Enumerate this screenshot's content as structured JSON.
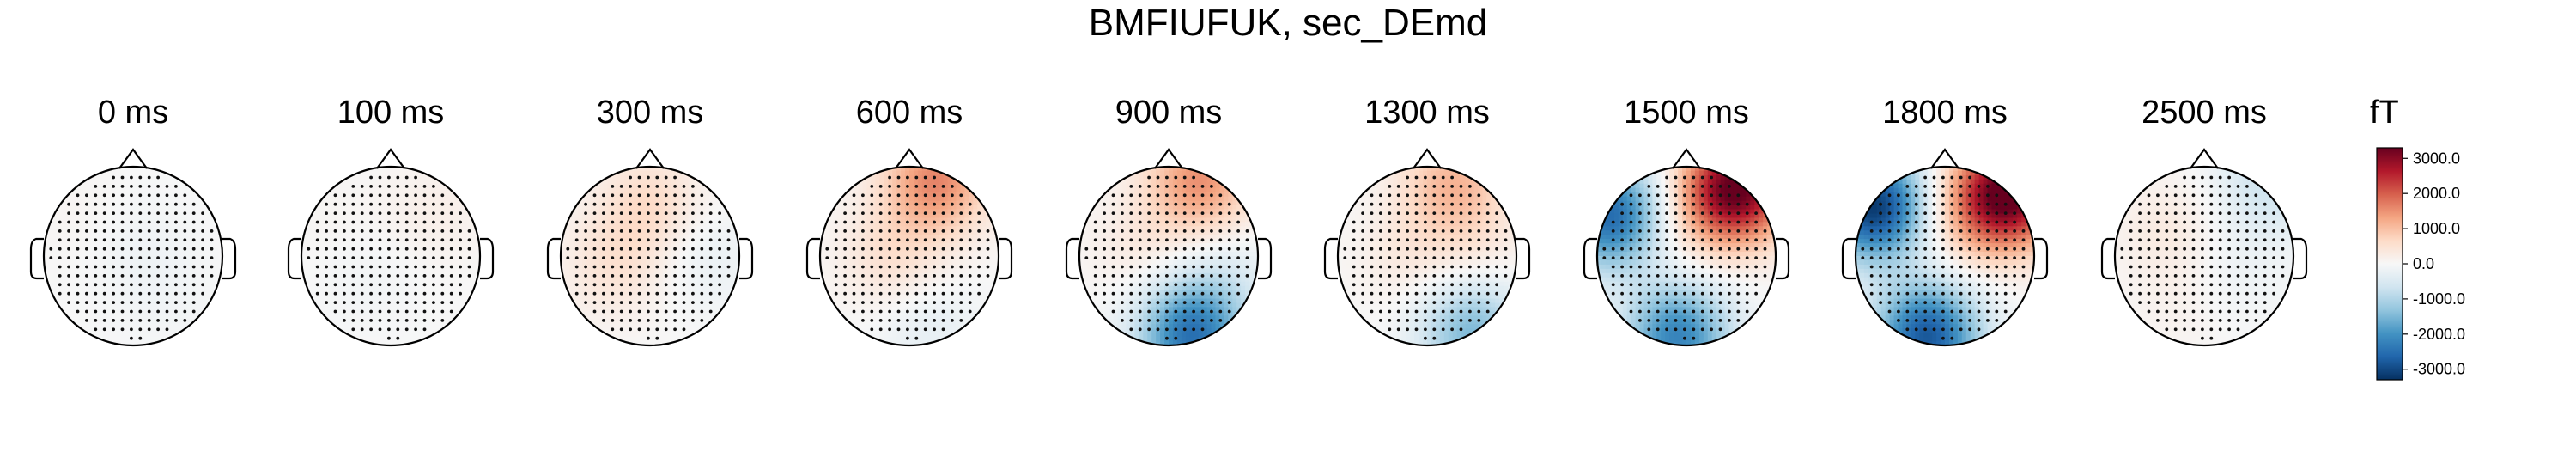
{
  "title": "BMFIUFUK, sec_DEmd",
  "chart_data": {
    "type": "heatmap",
    "title": "BMFIUFUK, sec_DEmd",
    "timepoints": [
      "0 ms",
      "100 ms",
      "300 ms",
      "600 ms",
      "900 ms",
      "1300 ms",
      "1500 ms",
      "1800 ms",
      "2500 ms"
    ],
    "colorbar": {
      "unit": "fT",
      "ticks": [
        "3000.0",
        "2000.0",
        "1000.0",
        "0.0",
        "-1000.0",
        "-2000.0",
        "-3000.0"
      ],
      "tick_values": [
        3000,
        2000,
        1000,
        0,
        -1000,
        -2000,
        -3000
      ],
      "range": [
        -3300,
        3300
      ],
      "colormap": "RdBu_r",
      "colors": [
        "#053061",
        "#2166ac",
        "#4393c3",
        "#92c5de",
        "#d1e5f0",
        "#f7f7f7",
        "#fddbc7",
        "#f4a582",
        "#d6604d",
        "#b2182b",
        "#67001f"
      ]
    },
    "sources": [
      [
        {
          "x": 0.0,
          "y": 0.1,
          "value": -150
        },
        {
          "x": -0.5,
          "y": 0.4,
          "value": 100
        },
        {
          "x": 0.4,
          "y": -0.5,
          "value": -80
        }
      ],
      [
        {
          "x": 0.5,
          "y": 0.5,
          "value": 200
        },
        {
          "x": -0.3,
          "y": -0.2,
          "value": -120
        },
        {
          "x": -0.6,
          "y": 0.3,
          "value": 80
        }
      ],
      [
        {
          "x": 0.0,
          "y": 0.6,
          "value": 600
        },
        {
          "x": -0.4,
          "y": -0.1,
          "value": 450
        },
        {
          "x": 0.6,
          "y": 0.0,
          "value": -250
        }
      ],
      [
        {
          "x": 0.3,
          "y": 0.85,
          "value": 1600
        },
        {
          "x": -0.2,
          "y": 0.0,
          "value": 500
        },
        {
          "x": 0.2,
          "y": -0.8,
          "value": -300
        }
      ],
      [
        {
          "x": 0.35,
          "y": 0.85,
          "value": 1500
        },
        {
          "x": 0.25,
          "y": -0.9,
          "value": -2400
        },
        {
          "x": -0.3,
          "y": 0.1,
          "value": 300
        },
        {
          "x": 0.6,
          "y": -0.3,
          "value": -400
        }
      ],
      [
        {
          "x": 0.3,
          "y": 0.8,
          "value": 1100
        },
        {
          "x": 0.5,
          "y": -0.85,
          "value": -1500
        },
        {
          "x": -0.2,
          "y": 0.0,
          "value": 300
        },
        {
          "x": 0.6,
          "y": 0.0,
          "value": 250
        }
      ],
      [
        {
          "x": 0.55,
          "y": 0.75,
          "value": 3400
        },
        {
          "x": -0.85,
          "y": 0.45,
          "value": -2600
        },
        {
          "x": -0.1,
          "y": -0.9,
          "value": -2200
        },
        {
          "x": -0.1,
          "y": 0.3,
          "value": 300
        }
      ],
      [
        {
          "x": 0.7,
          "y": 0.7,
          "value": 3400
        },
        {
          "x": -0.8,
          "y": 0.55,
          "value": -3200
        },
        {
          "x": -0.2,
          "y": -0.9,
          "value": -2800
        },
        {
          "x": 0.2,
          "y": 0.4,
          "value": 500
        }
      ],
      [
        {
          "x": 0.75,
          "y": 0.85,
          "value": -700
        },
        {
          "x": -0.4,
          "y": 0.3,
          "value": 300
        },
        {
          "x": 0.3,
          "y": -0.2,
          "value": -200
        },
        {
          "x": -0.2,
          "y": -0.5,
          "value": 150
        }
      ]
    ]
  }
}
